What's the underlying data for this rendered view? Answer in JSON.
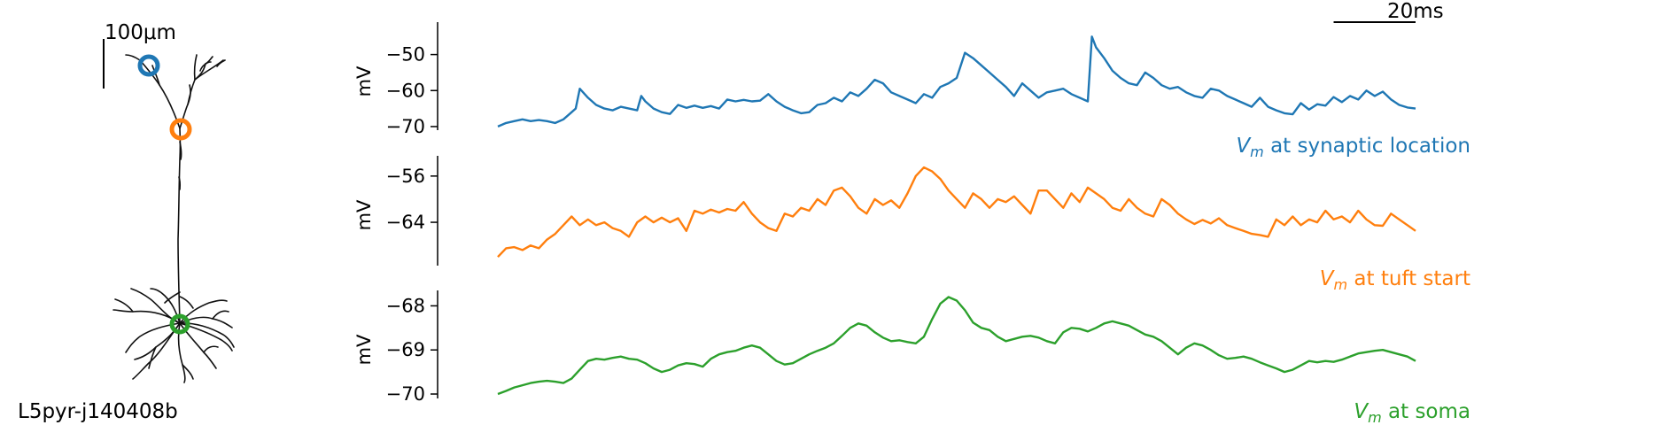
{
  "chart_data": [
    {
      "type": "line",
      "panel": "synaptic",
      "color": "#1f77b4",
      "ylabel": "mV",
      "ylim": [
        -71,
        -41
      ],
      "yticks": [
        -50,
        -60,
        -70
      ],
      "ytick_labels": [
        "−50",
        "−60",
        "−70"
      ],
      "label_prefix": "V",
      "label_sub": "m",
      "label_text": " at synaptic location",
      "x": [
        0,
        2,
        4,
        6,
        8,
        10,
        12,
        14,
        16,
        18,
        19,
        20,
        22,
        24,
        26,
        28,
        30,
        32,
        34,
        35,
        36,
        38,
        40,
        42,
        44,
        46,
        48,
        50,
        52,
        54,
        56,
        58,
        60,
        62,
        64,
        66,
        68,
        70,
        72,
        74,
        76,
        78,
        80,
        82,
        84,
        86,
        88,
        90,
        92,
        94,
        96,
        98,
        100,
        102,
        104,
        106,
        108,
        110,
        112,
        114,
        116,
        118,
        120,
        122,
        124,
        126,
        128,
        130,
        132,
        134,
        136,
        138,
        140,
        142,
        144,
        145,
        146,
        148,
        150,
        152,
        154,
        156,
        158,
        160,
        162,
        164,
        166,
        168,
        170,
        172,
        174,
        176,
        178,
        180,
        182,
        184,
        186,
        188,
        190,
        192,
        194,
        196,
        198,
        200,
        202,
        204,
        206,
        208,
        210,
        212,
        214,
        216,
        218,
        220,
        222,
        224
      ],
      "values": [
        -70,
        -69,
        -68.5,
        -68,
        -68.5,
        -68.2,
        -68.5,
        -69,
        -68,
        -66,
        -65,
        -59.5,
        -62,
        -64,
        -65,
        -65.5,
        -64.5,
        -65,
        -65.5,
        -61.5,
        -63,
        -65,
        -66,
        -66.5,
        -64,
        -64.8,
        -64.2,
        -64.8,
        -64.3,
        -65,
        -62.5,
        -63,
        -62.6,
        -63,
        -62.8,
        -61,
        -63,
        -64.5,
        -65.5,
        -66.3,
        -66,
        -64,
        -63.5,
        -62,
        -63,
        -60.5,
        -61.5,
        -59.5,
        -57,
        -58,
        -60.5,
        -61.5,
        -62.5,
        -63.5,
        -61,
        -62,
        -59,
        -58,
        -56.5,
        -49.5,
        -51,
        -53,
        -55,
        -57,
        -59,
        -61.5,
        -58,
        -60,
        -62,
        -60.5,
        -60,
        -59.5,
        -61,
        -62,
        -63,
        -45,
        -48,
        -51,
        -54.5,
        -56.5,
        -58,
        -58.5,
        -55,
        -56.5,
        -58.5,
        -59.5,
        -59,
        -60.5,
        -61.5,
        -62,
        -59.5,
        -60,
        -61.5,
        -62.5,
        -63.5,
        -64.5,
        -62,
        -64.5,
        -65.5,
        -66.3,
        -66.6,
        -63.5,
        -65.3,
        -63.8,
        -64.2,
        -61.8,
        -63.2,
        -61.5,
        -62.5,
        -60,
        -61.5,
        -60.3,
        -62.5,
        -64,
        -64.7,
        -65
      ]
    },
    {
      "type": "line",
      "panel": "tuft",
      "color": "#ff7f0e",
      "ylabel": "mV",
      "ylim": [
        -71.5,
        -52.5
      ],
      "yticks": [
        -56,
        -64
      ],
      "ytick_labels": [
        "−56",
        "−64"
      ],
      "label_prefix": "V",
      "label_sub": "m",
      "label_text": " at tuft start",
      "x": [
        0,
        2,
        4,
        6,
        8,
        10,
        12,
        14,
        16,
        18,
        20,
        22,
        24,
        26,
        28,
        30,
        32,
        34,
        36,
        38,
        40,
        42,
        44,
        46,
        48,
        50,
        52,
        54,
        56,
        58,
        60,
        62,
        64,
        66,
        68,
        70,
        72,
        74,
        76,
        78,
        80,
        82,
        84,
        86,
        88,
        90,
        92,
        94,
        96,
        98,
        100,
        102,
        104,
        106,
        108,
        110,
        112,
        114,
        116,
        118,
        120,
        122,
        124,
        126,
        128,
        130,
        132,
        134,
        136,
        138,
        140,
        142,
        144,
        146,
        148,
        150,
        152,
        154,
        156,
        158,
        160,
        162,
        164,
        166,
        168,
        170,
        172,
        174,
        176,
        178,
        180,
        182,
        184,
        186,
        188,
        190,
        192,
        194,
        196,
        198,
        200,
        202,
        204,
        206,
        208,
        210,
        212,
        214,
        216,
        218,
        220,
        222,
        224
      ],
      "values": [
        -70,
        -68.5,
        -68.3,
        -68.8,
        -68,
        -68.5,
        -67,
        -66,
        -64.5,
        -63,
        -64.5,
        -63.5,
        -64.5,
        -64,
        -65,
        -65.5,
        -66.5,
        -64,
        -63,
        -64,
        -63.2,
        -64,
        -63.3,
        -65.5,
        -62,
        -62.5,
        -61.8,
        -62.3,
        -61.7,
        -62,
        -60.5,
        -62.5,
        -64,
        -65,
        -65.5,
        -62.5,
        -63,
        -61.5,
        -62,
        -60,
        -61,
        -58.5,
        -58,
        -59.5,
        -61.5,
        -62.5,
        -60,
        -61,
        -60.2,
        -61.5,
        -59,
        -56,
        -54.5,
        -55.2,
        -56.5,
        -58.5,
        -60,
        -61.5,
        -59,
        -60,
        -61.5,
        -60,
        -60.5,
        -59.5,
        -61,
        -62.5,
        -58.5,
        -58.5,
        -60,
        -61.5,
        -59,
        -60.5,
        -58,
        -59,
        -60,
        -61.5,
        -62,
        -60,
        -61.5,
        -62.5,
        -63,
        -60,
        -61,
        -62.5,
        -63.5,
        -64.3,
        -63.6,
        -64.2,
        -63.3,
        -64.5,
        -65,
        -65.5,
        -66,
        -66.2,
        -66.5,
        -63.5,
        -64.5,
        -63,
        -64.5,
        -63.5,
        -64,
        -62,
        -63.5,
        -63,
        -64,
        -62,
        -63.5,
        -64.5,
        -64.6,
        -62.5,
        -63.5,
        -64.5,
        -65.5
      ]
    },
    {
      "type": "line",
      "panel": "soma",
      "color": "#2ca02c",
      "ylabel": "mV",
      "ylim": [
        -70.1,
        -67.65
      ],
      "yticks": [
        -68,
        -69,
        -70
      ],
      "ytick_labels": [
        "−68",
        "−69",
        "−70"
      ],
      "label_prefix": "V",
      "label_sub": "m",
      "label_text": " at soma",
      "x": [
        0,
        2,
        4,
        6,
        8,
        10,
        12,
        14,
        16,
        18,
        20,
        22,
        24,
        26,
        28,
        30,
        32,
        34,
        36,
        38,
        40,
        42,
        44,
        46,
        48,
        50,
        52,
        54,
        56,
        58,
        60,
        62,
        64,
        66,
        68,
        70,
        72,
        74,
        76,
        78,
        80,
        82,
        84,
        86,
        88,
        90,
        92,
        94,
        96,
        98,
        100,
        102,
        104,
        106,
        108,
        110,
        112,
        114,
        116,
        118,
        120,
        122,
        124,
        126,
        128,
        130,
        132,
        134,
        136,
        138,
        140,
        142,
        144,
        146,
        148,
        150,
        152,
        154,
        156,
        158,
        160,
        162,
        164,
        166,
        168,
        170,
        172,
        174,
        176,
        178,
        180,
        182,
        184,
        186,
        188,
        190,
        192,
        194,
        196,
        198,
        200,
        202,
        204,
        206,
        208,
        210,
        212,
        214,
        216,
        218,
        220,
        222,
        224
      ],
      "values": [
        -70,
        -69.93,
        -69.85,
        -69.8,
        -69.75,
        -69.72,
        -69.7,
        -69.72,
        -69.75,
        -69.65,
        -69.45,
        -69.25,
        -69.2,
        -69.22,
        -69.18,
        -69.15,
        -69.2,
        -69.22,
        -69.3,
        -69.42,
        -69.5,
        -69.45,
        -69.35,
        -69.3,
        -69.32,
        -69.38,
        -69.2,
        -69.1,
        -69.05,
        -69.02,
        -68.95,
        -68.9,
        -68.95,
        -69.1,
        -69.25,
        -69.33,
        -69.3,
        -69.2,
        -69.1,
        -69.02,
        -68.95,
        -68.85,
        -68.68,
        -68.5,
        -68.4,
        -68.45,
        -68.6,
        -68.72,
        -68.8,
        -68.78,
        -68.82,
        -68.85,
        -68.7,
        -68.3,
        -67.95,
        -67.8,
        -67.88,
        -68.1,
        -68.38,
        -68.5,
        -68.55,
        -68.7,
        -68.8,
        -68.75,
        -68.7,
        -68.68,
        -68.72,
        -68.8,
        -68.85,
        -68.6,
        -68.5,
        -68.52,
        -68.58,
        -68.5,
        -68.4,
        -68.35,
        -68.4,
        -68.45,
        -68.55,
        -68.65,
        -68.7,
        -68.8,
        -68.95,
        -69.1,
        -68.95,
        -68.85,
        -68.9,
        -69.0,
        -69.12,
        -69.2,
        -69.18,
        -69.15,
        -69.2,
        -69.28,
        -69.35,
        -69.42,
        -69.5,
        -69.45,
        -69.35,
        -69.25,
        -69.28,
        -69.25,
        -69.27,
        -69.22,
        -69.15,
        -69.08,
        -69.05,
        -69.02,
        -69.0,
        -69.05,
        -69.1,
        -69.15,
        -69.25
      ]
    }
  ],
  "morphology": {
    "name": "L5pyr-j140408b",
    "scale_bar_label": "100μm",
    "marker_colors": {
      "synaptic": "#1f77b4",
      "tuft": "#ff7f0e",
      "soma": "#2ca02c"
    }
  },
  "time_scale_bar": {
    "label": "20ms",
    "duration": 20
  }
}
